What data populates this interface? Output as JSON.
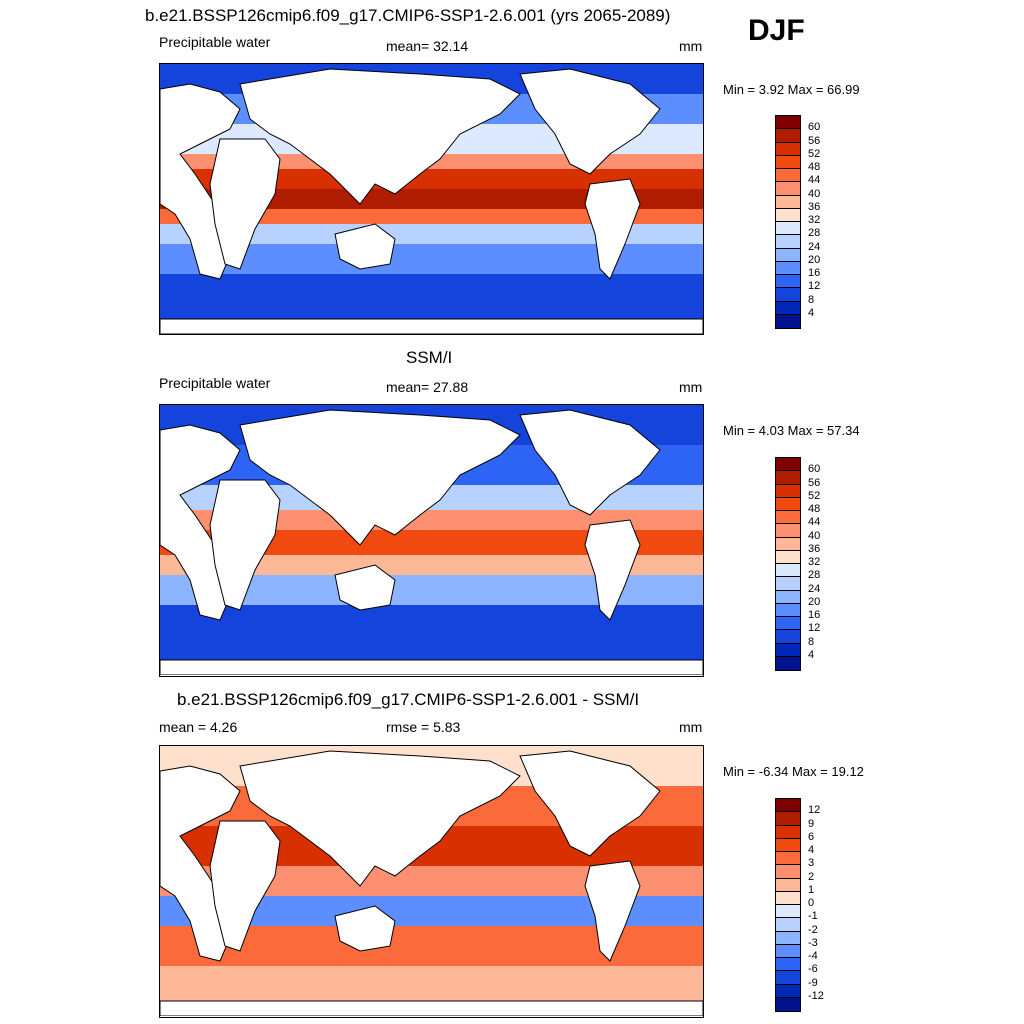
{
  "season": "DJF",
  "panels": [
    {
      "title": "b.e21.BSSP126cmip6.f09_g17.CMIP6-SSP1-2.6.001 (yrs 2065-2089)",
      "left_label": "Precipitable water",
      "center_label": "mean=  32.14",
      "units": "mm",
      "minmax": "Min =   3.92 Max =  66.99",
      "colorbar": {
        "labels": [
          "60",
          "56",
          "52",
          "48",
          "44",
          "40",
          "36",
          "32",
          "28",
          "24",
          "20",
          "16",
          "12",
          "8",
          "4"
        ],
        "colors": [
          "#7f0000",
          "#b01c00",
          "#d83000",
          "#f04a10",
          "#fb6a3a",
          "#fc9070",
          "#fdb898",
          "#fee0cc",
          "#dde9ff",
          "#b8d2ff",
          "#8cb4ff",
          "#5c8eff",
          "#2e64f5",
          "#1444dc",
          "#0028b8",
          "#00128c"
        ]
      }
    },
    {
      "title": "SSM/I",
      "left_label": "Precipitable water",
      "center_label": "mean=  27.88",
      "units": "mm",
      "minmax": "Min =   4.03 Max =  57.34",
      "colorbar": {
        "labels": [
          "60",
          "56",
          "52",
          "48",
          "44",
          "40",
          "36",
          "32",
          "28",
          "24",
          "20",
          "16",
          "12",
          "8",
          "4"
        ],
        "colors": [
          "#7f0000",
          "#b01c00",
          "#d83000",
          "#f04a10",
          "#fb6a3a",
          "#fc9070",
          "#fdb898",
          "#fee0cc",
          "#dde9ff",
          "#b8d2ff",
          "#8cb4ff",
          "#5c8eff",
          "#2e64f5",
          "#1444dc",
          "#0028b8",
          "#00128c"
        ]
      }
    },
    {
      "title": "b.e21.BSSP126cmip6.f09_g17.CMIP6-SSP1-2.6.001 - SSM/I",
      "left_label": "mean =   4.26",
      "center_label": "rmse =   5.83",
      "units": "mm",
      "minmax": "Min =  -6.34 Max =  19.12",
      "colorbar": {
        "labels": [
          "12",
          "9",
          "6",
          "4",
          "3",
          "2",
          "1",
          "0",
          "-1",
          "-2",
          "-3",
          "-4",
          "-6",
          "-9",
          "-12"
        ],
        "colors": [
          "#7f0000",
          "#b01c00",
          "#d83000",
          "#f04a10",
          "#fb6a3a",
          "#fc9070",
          "#fdb898",
          "#fee0cc",
          "#dde9ff",
          "#b8d2ff",
          "#8cb4ff",
          "#5c8eff",
          "#2e64f5",
          "#1444dc",
          "#0028b8",
          "#00128c"
        ]
      }
    }
  ],
  "colors": {
    "land": "#ffffff",
    "coast": "#000000"
  }
}
